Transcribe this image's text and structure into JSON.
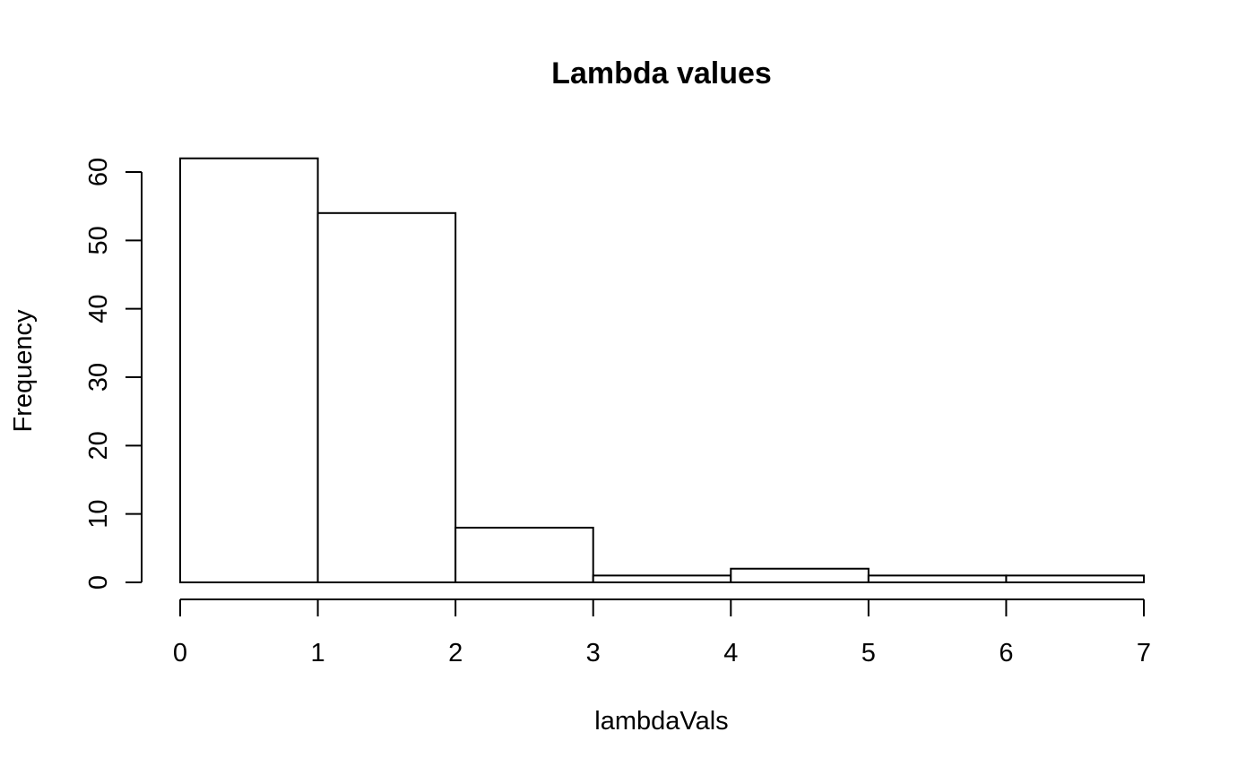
{
  "chart_data": {
    "type": "bar",
    "title": "Lambda values",
    "xlabel": "lambdaVals",
    "ylabel": "Frequency",
    "bins": [
      {
        "start": 0,
        "end": 1,
        "count": 62
      },
      {
        "start": 1,
        "end": 2,
        "count": 54
      },
      {
        "start": 2,
        "end": 3,
        "count": 8
      },
      {
        "start": 3,
        "end": 4,
        "count": 1
      },
      {
        "start": 4,
        "end": 5,
        "count": 2
      },
      {
        "start": 5,
        "end": 6,
        "count": 1
      },
      {
        "start": 6,
        "end": 7,
        "count": 1
      }
    ],
    "xlim": [
      0,
      7
    ],
    "ylim": [
      0,
      60
    ],
    "x_ticks": [
      "0",
      "1",
      "2",
      "3",
      "4",
      "5",
      "6",
      "7"
    ],
    "y_ticks": [
      "0",
      "10",
      "20",
      "30",
      "40",
      "50",
      "60"
    ],
    "grid": false,
    "bar_fill": "#ffffff",
    "bar_stroke": "#000000"
  }
}
